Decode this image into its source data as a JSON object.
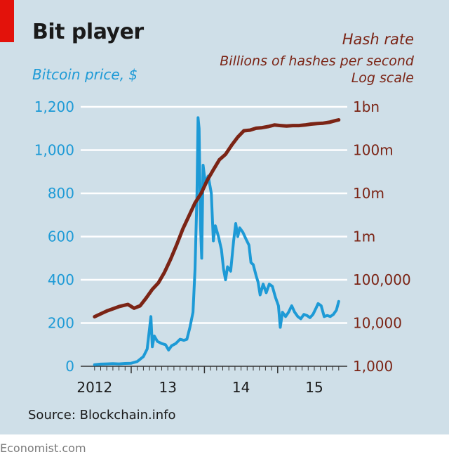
{
  "header": {
    "title": "Bit player",
    "left_subtitle": "Bitcoin price, $",
    "right_title": "Hash rate",
    "right_units": "Billions of hashes per second",
    "right_scale_note": "Log scale"
  },
  "source": "Source: Blockchain.info",
  "footer": "Economist.com",
  "colors": {
    "price": "#1d9ad6",
    "hash": "#7b2415",
    "background": "#cfdfe8",
    "accent": "#e3120b",
    "grid": "#ffffff"
  },
  "chart_data": {
    "type": "line",
    "title": "Bit player",
    "xlabel": "",
    "x_range": [
      "2012-07",
      "2015-11"
    ],
    "x_ticks": [
      {
        "label": "2012",
        "date": "2012-07"
      },
      {
        "label": "13",
        "date": "2013-07"
      },
      {
        "label": "14",
        "date": "2014-07"
      },
      {
        "label": "15",
        "date": "2015-07"
      }
    ],
    "year_boundaries": [
      "2013-01",
      "2014-01",
      "2015-01"
    ],
    "grid": true,
    "left_axis": {
      "label": "Bitcoin price, $",
      "scale": "linear",
      "range": [
        0,
        1200
      ],
      "ticks": [
        0,
        200,
        400,
        600,
        800,
        1000,
        1200
      ],
      "tick_labels": [
        "0",
        "200",
        "400",
        "600",
        "800",
        "1,000",
        "1,200"
      ]
    },
    "right_axis": {
      "label": "Hash rate, Billions of hashes per second",
      "scale": "log",
      "range": [
        1000,
        1000000000
      ],
      "ticks": [
        1000,
        10000,
        100000,
        1000000,
        10000000,
        100000000,
        1000000000
      ],
      "tick_labels": [
        "1,000",
        "10,000",
        "100,000",
        "1m",
        "10m",
        "100m",
        "1bn"
      ]
    },
    "series": [
      {
        "name": "Bitcoin price",
        "axis": "left",
        "points": [
          [
            "2012-07-01",
            7
          ],
          [
            "2012-08-01",
            10
          ],
          [
            "2012-09-01",
            11
          ],
          [
            "2012-10-01",
            12
          ],
          [
            "2012-11-01",
            11
          ],
          [
            "2012-12-01",
            13
          ],
          [
            "2013-01-01",
            14
          ],
          [
            "2013-02-01",
            22
          ],
          [
            "2013-03-01",
            45
          ],
          [
            "2013-03-20",
            80
          ],
          [
            "2013-04-08",
            230
          ],
          [
            "2013-04-15",
            90
          ],
          [
            "2013-04-25",
            140
          ],
          [
            "2013-05-10",
            115
          ],
          [
            "2013-06-01",
            105
          ],
          [
            "2013-06-20",
            100
          ],
          [
            "2013-07-05",
            75
          ],
          [
            "2013-07-20",
            95
          ],
          [
            "2013-08-10",
            105
          ],
          [
            "2013-09-01",
            125
          ],
          [
            "2013-09-20",
            120
          ],
          [
            "2013-10-05",
            125
          ],
          [
            "2013-10-20",
            180
          ],
          [
            "2013-11-05",
            250
          ],
          [
            "2013-11-15",
            450
          ],
          [
            "2013-11-25",
            800
          ],
          [
            "2013-11-30",
            1150
          ],
          [
            "2013-12-05",
            1100
          ],
          [
            "2013-12-12",
            650
          ],
          [
            "2013-12-18",
            500
          ],
          [
            "2013-12-25",
            930
          ],
          [
            "2014-01-05",
            850
          ],
          [
            "2014-01-20",
            880
          ],
          [
            "2014-02-05",
            800
          ],
          [
            "2014-02-15",
            580
          ],
          [
            "2014-02-25",
            650
          ],
          [
            "2014-03-10",
            600
          ],
          [
            "2014-03-25",
            540
          ],
          [
            "2014-04-05",
            450
          ],
          [
            "2014-04-15",
            400
          ],
          [
            "2014-04-25",
            460
          ],
          [
            "2014-05-10",
            440
          ],
          [
            "2014-05-25",
            580
          ],
          [
            "2014-06-05",
            660
          ],
          [
            "2014-06-15",
            600
          ],
          [
            "2014-06-25",
            640
          ],
          [
            "2014-07-10",
            620
          ],
          [
            "2014-07-25",
            590
          ],
          [
            "2014-08-10",
            560
          ],
          [
            "2014-08-20",
            480
          ],
          [
            "2014-09-01",
            470
          ],
          [
            "2014-09-15",
            420
          ],
          [
            "2014-09-25",
            390
          ],
          [
            "2014-10-05",
            330
          ],
          [
            "2014-10-20",
            380
          ],
          [
            "2014-11-05",
            340
          ],
          [
            "2014-11-20",
            380
          ],
          [
            "2014-12-05",
            370
          ],
          [
            "2014-12-20",
            320
          ],
          [
            "2015-01-05",
            280
          ],
          [
            "2015-01-14",
            180
          ],
          [
            "2015-01-25",
            250
          ],
          [
            "2015-02-10",
            230
          ],
          [
            "2015-02-25",
            250
          ],
          [
            "2015-03-10",
            280
          ],
          [
            "2015-03-25",
            250
          ],
          [
            "2015-04-10",
            230
          ],
          [
            "2015-04-25",
            220
          ],
          [
            "2015-05-10",
            240
          ],
          [
            "2015-05-25",
            235
          ],
          [
            "2015-06-10",
            225
          ],
          [
            "2015-06-25",
            240
          ],
          [
            "2015-07-10",
            270
          ],
          [
            "2015-07-20",
            290
          ],
          [
            "2015-08-05",
            280
          ],
          [
            "2015-08-20",
            230
          ],
          [
            "2015-09-05",
            235
          ],
          [
            "2015-09-20",
            230
          ],
          [
            "2015-10-05",
            240
          ],
          [
            "2015-10-20",
            260
          ],
          [
            "2015-11-01",
            300
          ]
        ]
      },
      {
        "name": "Hash rate",
        "axis": "right",
        "points": [
          [
            "2012-07-01",
            14000
          ],
          [
            "2012-09-01",
            19000
          ],
          [
            "2012-11-01",
            24000
          ],
          [
            "2012-12-15",
            27000
          ],
          [
            "2013-01-15",
            22000
          ],
          [
            "2013-02-15",
            25000
          ],
          [
            "2013-03-15",
            38000
          ],
          [
            "2013-04-15",
            60000
          ],
          [
            "2013-05-15",
            85000
          ],
          [
            "2013-06-15",
            150000
          ],
          [
            "2013-07-15",
            300000
          ],
          [
            "2013-08-15",
            650000
          ],
          [
            "2013-09-15",
            1500000
          ],
          [
            "2013-10-15",
            3000000
          ],
          [
            "2013-11-15",
            6000000
          ],
          [
            "2013-12-15",
            10000000
          ],
          [
            "2014-01-15",
            20000000
          ],
          [
            "2014-02-15",
            35000000
          ],
          [
            "2014-03-15",
            60000000
          ],
          [
            "2014-04-15",
            80000000
          ],
          [
            "2014-05-15",
            130000000
          ],
          [
            "2014-06-15",
            200000000
          ],
          [
            "2014-07-15",
            280000000
          ],
          [
            "2014-08-15",
            290000000
          ],
          [
            "2014-09-15",
            320000000
          ],
          [
            "2014-10-15",
            330000000
          ],
          [
            "2014-11-15",
            350000000
          ],
          [
            "2014-12-15",
            380000000
          ],
          [
            "2015-01-15",
            370000000
          ],
          [
            "2015-02-15",
            360000000
          ],
          [
            "2015-03-15",
            370000000
          ],
          [
            "2015-04-15",
            370000000
          ],
          [
            "2015-05-15",
            380000000
          ],
          [
            "2015-06-15",
            400000000
          ],
          [
            "2015-07-15",
            410000000
          ],
          [
            "2015-08-15",
            420000000
          ],
          [
            "2015-09-15",
            440000000
          ],
          [
            "2015-10-15",
            480000000
          ],
          [
            "2015-11-01",
            500000000
          ]
        ]
      }
    ]
  }
}
